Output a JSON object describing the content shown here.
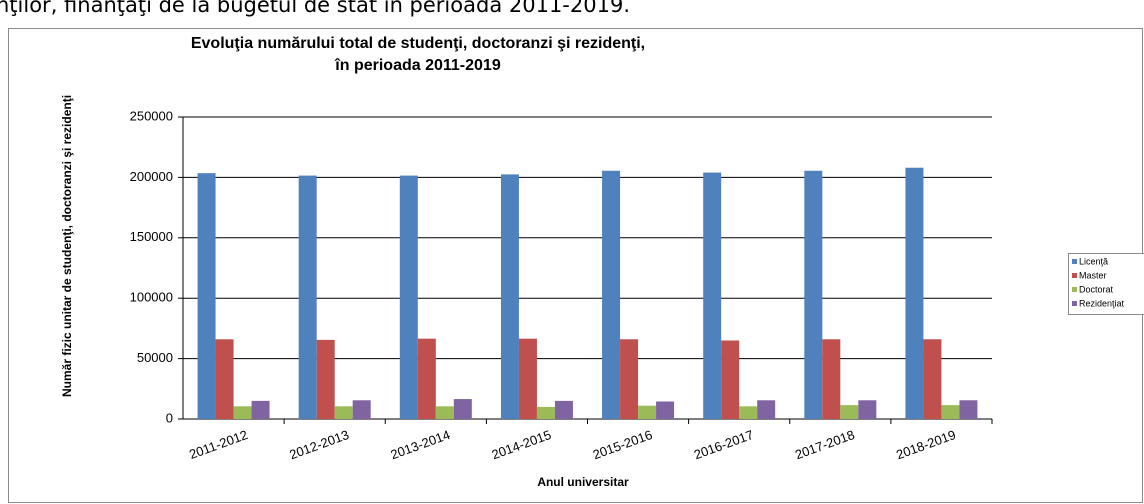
{
  "caption": "nţilor, finanţaţi de la bugetul de stat în perioada 2011-2019.",
  "chart_data": {
    "type": "bar",
    "title": [
      "Evoluţia numărului total de studenţi, doctoranzi şi rezidenţi,",
      "în perioada 2011-2019"
    ],
    "x_label": "Anul universitar",
    "y_label": "Număr fizic unitar de studenţi, doctoranzi şi rezidenţi",
    "categories": [
      "2011-2012",
      "2012-2013",
      "2013-2014",
      "2014-2015",
      "2015-2016",
      "2016-2017",
      "2017-2018",
      "2018-2019"
    ],
    "series": [
      {
        "name": "Licenţă",
        "color": "#4f81bd",
        "values": [
          203500,
          201500,
          201500,
          202500,
          205500,
          204000,
          205500,
          208000
        ]
      },
      {
        "name": "Master",
        "color": "#c0504d",
        "values": [
          66000,
          65500,
          66500,
          66500,
          66000,
          65000,
          66000,
          66000
        ]
      },
      {
        "name": "Doctorat",
        "color": "#9bbb59",
        "values": [
          10500,
          10500,
          10500,
          10000,
          11000,
          10500,
          11500,
          11500
        ]
      },
      {
        "name": "Rezidenţiat",
        "color": "#8064a2",
        "values": [
          15000,
          15500,
          16500,
          15000,
          14500,
          15500,
          15500,
          15500
        ]
      }
    ],
    "ylim": [
      0,
      250000
    ],
    "yticks": [
      0,
      50000,
      100000,
      150000,
      200000,
      250000
    ],
    "grid": true,
    "legend": "right"
  }
}
